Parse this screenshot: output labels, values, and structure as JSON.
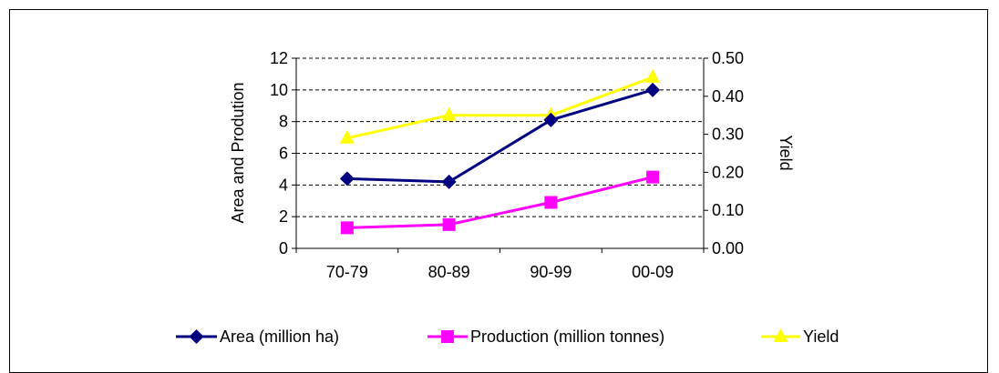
{
  "chart_data": {
    "type": "line",
    "categories": [
      "70-79",
      "80-89",
      "90-99",
      "00-09"
    ],
    "series": [
      {
        "name": "Area (million ha)",
        "axis": "left",
        "color": "#000080",
        "marker": "diamond",
        "values": [
          4.4,
          4.2,
          8.1,
          10.0
        ]
      },
      {
        "name": "Production (million tonnes)",
        "axis": "left",
        "color": "#FF00FF",
        "marker": "square",
        "values": [
          1.3,
          1.5,
          2.9,
          4.5
        ]
      },
      {
        "name": "Yield",
        "axis": "right",
        "color": "#FFFF00",
        "marker": "triangle",
        "values": [
          0.29,
          0.35,
          0.35,
          0.45
        ]
      }
    ],
    "ylabel": "Area and Prodution",
    "y2label": "Yield",
    "ylim": [
      0,
      12
    ],
    "y2lim": [
      0,
      0.5
    ],
    "yticks": [
      "0",
      "2",
      "4",
      "6",
      "8",
      "10",
      "12"
    ],
    "y2ticks": [
      "0.00",
      "0.10",
      "0.20",
      "0.30",
      "0.40",
      "0.50"
    ],
    "grid": "horizontal dashed",
    "legend": "bottom"
  }
}
